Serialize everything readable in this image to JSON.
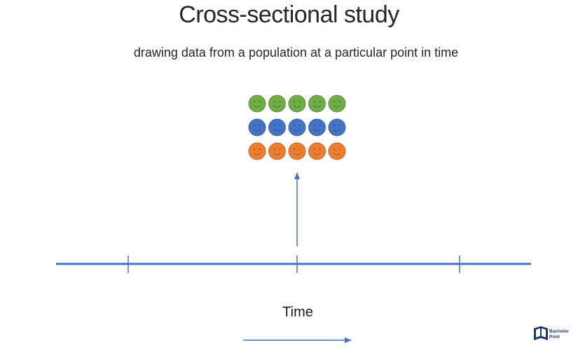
{
  "title": "Cross-sectional study",
  "subtitle": "drawing data from a population at a particular point in time",
  "axis_label": "Time",
  "logo": {
    "line1": "Bachelor",
    "line2": "Print"
  },
  "colors": {
    "line": "#4472C4",
    "green": "#70AD47",
    "blue": "#4472C4",
    "orange": "#ED7D31",
    "logo": "#1f3864"
  },
  "population": {
    "rows": [
      "green",
      "blue",
      "orange"
    ],
    "per_row": 5
  }
}
